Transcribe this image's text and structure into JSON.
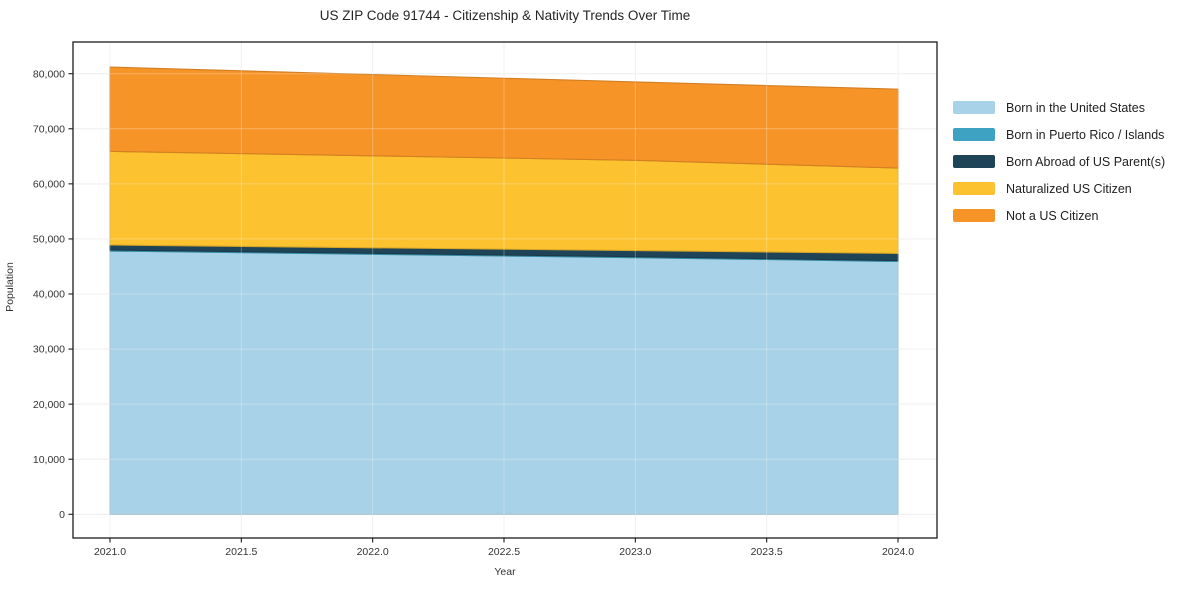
{
  "title": "US ZIP Code 91744 - Citizenship & Nativity Trends Over Time",
  "chart_data": {
    "type": "area",
    "stacked": true,
    "title": "US ZIP Code 91744 - Citizenship & Nativity Trends Over Time",
    "xlabel": "Year",
    "ylabel": "Population",
    "xlim": [
      2021,
      2024
    ],
    "ylim": [
      0,
      80000
    ],
    "grid": true,
    "legend_position": "right",
    "x": [
      2021,
      2022,
      2023,
      2024
    ],
    "series": [
      {
        "name": "Born in the United States",
        "color": "#a8d2e7",
        "values": [
          47800,
          47200,
          46600,
          45900
        ]
      },
      {
        "name": "Born in Puerto Rico / Islands",
        "color": "#3ea3c2",
        "values": [
          200,
          190,
          180,
          170
        ]
      },
      {
        "name": "Born Abroad of US Parent(s)",
        "color": "#1f4457",
        "values": [
          900,
          1000,
          1100,
          1300
        ]
      },
      {
        "name": "Naturalized US Citizen",
        "color": "#fcc22f",
        "values": [
          17000,
          16700,
          16400,
          15500
        ]
      },
      {
        "name": "Not a US Citizen",
        "color": "#f79428",
        "values": [
          15300,
          14760,
          14220,
          14330
        ]
      }
    ],
    "totals": [
      81200,
      79850,
      78500,
      77200
    ],
    "x_tick_values": [
      2021,
      2021.5,
      2022,
      2022.5,
      2023,
      2023.5,
      2024
    ],
    "x_ticks": [
      "2021.0",
      "2021.5",
      "2022.0",
      "2022.5",
      "2023.0",
      "2023.5",
      "2024.0"
    ],
    "y_tick_values": [
      0,
      10000,
      20000,
      30000,
      40000,
      50000,
      60000,
      70000,
      80000
    ],
    "y_ticks": [
      "0",
      "10,000",
      "20,000",
      "30,000",
      "40,000",
      "50,000",
      "60,000",
      "70,000",
      "80,000"
    ],
    "colors": {
      "frame": "#1c1c1c",
      "grid": "#eaeaea",
      "tick_text": "#333333"
    }
  }
}
